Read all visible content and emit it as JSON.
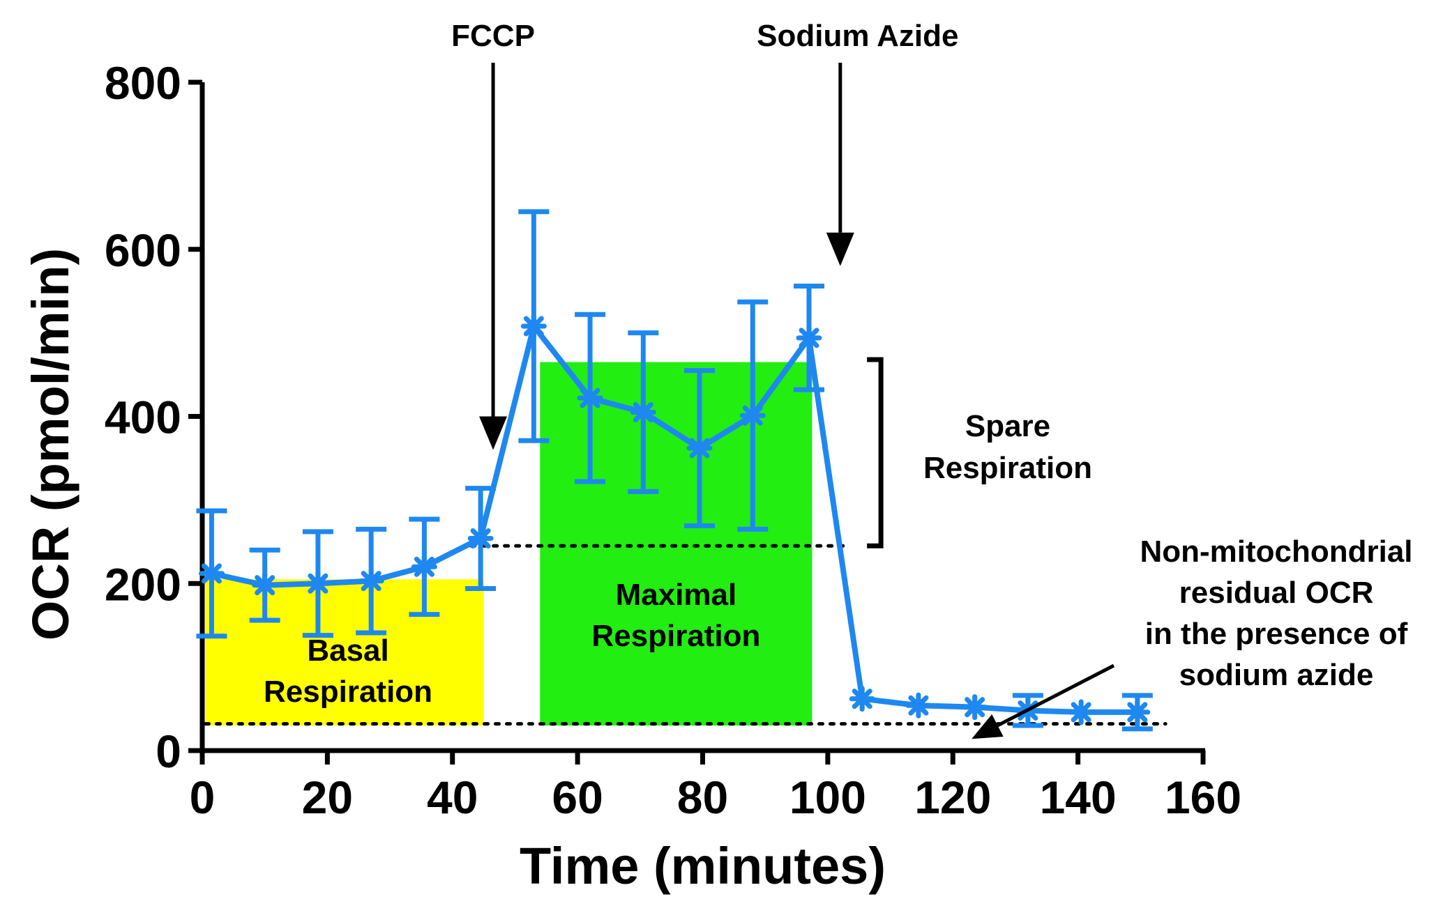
{
  "chart_data": {
    "type": "line",
    "xlabel": "Time (minutes)",
    "ylabel": "OCR (pmol/min)",
    "xlim": [
      0,
      160
    ],
    "ylim": [
      0,
      800
    ],
    "xticks": [
      0,
      20,
      40,
      60,
      80,
      100,
      120,
      140,
      160
    ],
    "yticks": [
      0,
      200,
      400,
      600,
      800
    ],
    "grid": false,
    "color": "#1e88f0",
    "series": [
      {
        "x": [
          1.5,
          10,
          18.5,
          27,
          35.5,
          44.5,
          53,
          62,
          70.5,
          79.5,
          88,
          97,
          105.5,
          114.5,
          123.5,
          132,
          140.5,
          149.5
        ],
        "y": [
          212,
          198,
          200,
          203,
          220,
          254,
          508,
          422,
          405,
          362,
          401,
          494,
          62,
          54,
          52,
          48,
          46,
          46
        ],
        "err": [
          75,
          42,
          62,
          62,
          57,
          60,
          137,
          100,
          95,
          93,
          136,
          62,
          0,
          0,
          0,
          18,
          0,
          20
        ]
      }
    ],
    "regions": [
      {
        "x0": 0.5,
        "x1": 45,
        "y0": 30,
        "y1": 205,
        "color": "#ffff00",
        "label_lines": [
          "Basal",
          "Respiration"
        ]
      },
      {
        "x0": 54,
        "x1": 97.5,
        "y0": 30,
        "y1": 465,
        "color": "#22ee11",
        "label_lines": [
          "Maximal",
          "Respiration"
        ]
      }
    ],
    "reference_lines": [
      {
        "y": 245,
        "x0": 43,
        "x1": 103
      },
      {
        "y": 32,
        "x0": 0.5,
        "x1": 154
      }
    ],
    "injections": [
      {
        "label": "FCCP",
        "x": 46.5,
        "arrow_to_y": 360
      },
      {
        "label": "Sodium Azide",
        "x": 102,
        "arrow_to_y": 580
      }
    ],
    "spare_bracket": {
      "x": 108.5,
      "y_top": 468,
      "y_bottom": 245,
      "label_lines": [
        "Spare",
        "Respiration"
      ]
    },
    "residual_note": {
      "label_lines": [
        "Non-mitochondrial",
        "residual OCR",
        "in the presence of",
        "sodium azide"
      ],
      "arrow_to": [
        123,
        14
      ]
    }
  }
}
